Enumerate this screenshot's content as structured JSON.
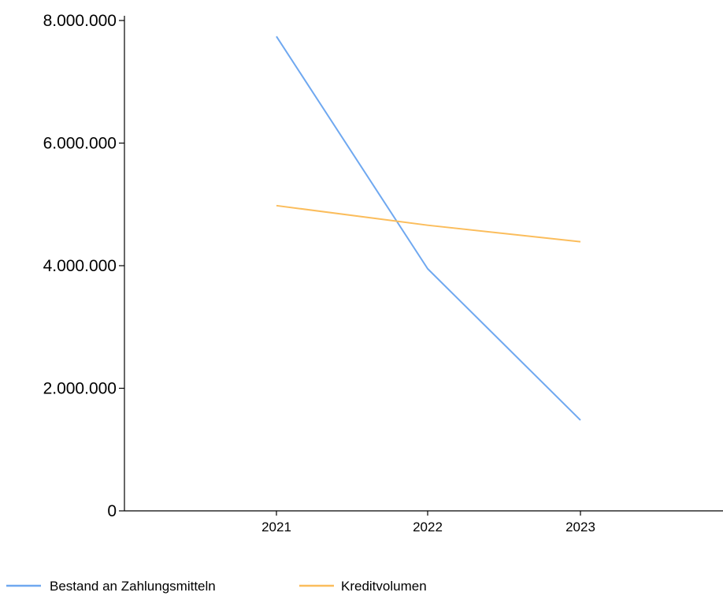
{
  "chart_data": {
    "type": "line",
    "categories": [
      "2021",
      "2022",
      "2023"
    ],
    "series": [
      {
        "name": "Bestand an Zahlungsmitteln",
        "values": [
          7740000,
          3950000,
          1480000
        ],
        "color": "#6fa8f0"
      },
      {
        "name": "Kreditvolumen",
        "values": [
          4980000,
          4660000,
          4390000
        ],
        "color": "#fbbd5c"
      }
    ],
    "ylim": [
      0,
      8000000
    ],
    "yticks": [
      0,
      2000000,
      4000000,
      6000000,
      8000000
    ],
    "ytick_labels": [
      "0",
      "2.000.000",
      "4.000.000",
      "6.000.000",
      "8.000.000"
    ],
    "grid": false,
    "legend_position": "bottom-left",
    "axis_color": "#000000"
  }
}
